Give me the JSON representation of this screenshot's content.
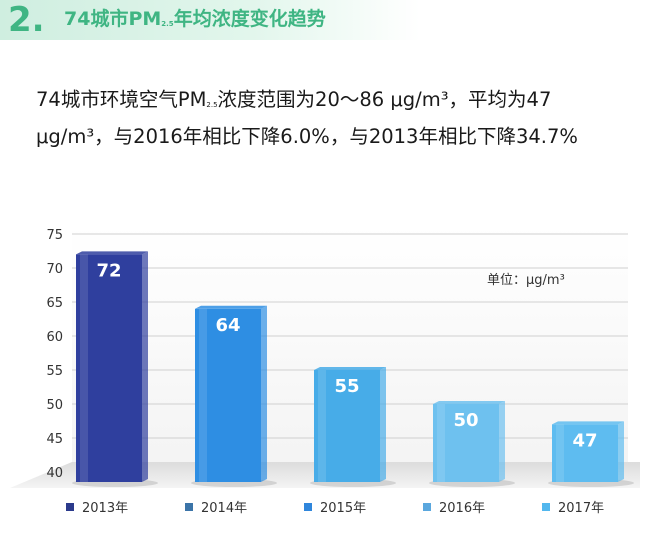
{
  "header": {
    "number": "2.",
    "title_main": "74城市PM",
    "title_sub": "2.5",
    "title_rest": "年均浓度变化趋势"
  },
  "summary": {
    "part1": "74城市环境空气PM",
    "sub": "2.5",
    "part2": "浓度范围为20～86 μg/m³，平均为47 μg/m³，与2016年相比下降6.0%，与2013年相比下降34.7%"
  },
  "colors": {
    "accent": "#3fb583",
    "bars": [
      "#2f3f9e",
      "#2e8ee3",
      "#47ace8",
      "#6ec1ef",
      "#5ebcf0"
    ],
    "legend": [
      "#2b3a8c",
      "#3b74a8",
      "#2f86dc",
      "#5aa7de",
      "#52b7ee"
    ]
  },
  "chart_data": {
    "type": "bar",
    "categories": [
      "2013年",
      "2014年",
      "2015年",
      "2016年",
      "2017年"
    ],
    "values": [
      72,
      64,
      55,
      50,
      47
    ],
    "ylim": [
      40,
      75
    ],
    "yticks": [
      40,
      45,
      50,
      55,
      60,
      65,
      70,
      75
    ],
    "unit": "单位：μg/m³",
    "grid": true,
    "legend": "bottom"
  }
}
